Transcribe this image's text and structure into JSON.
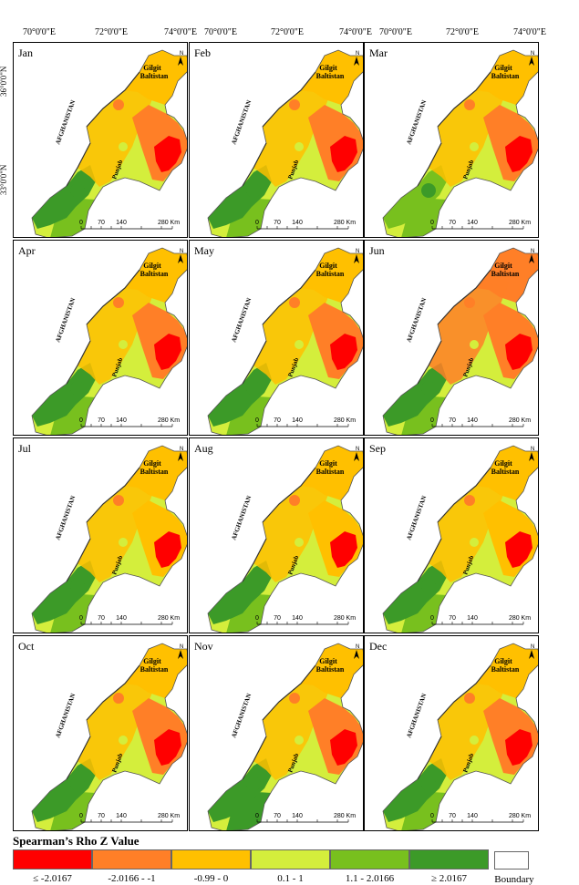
{
  "top_axis_labels": [
    "70°0'0\"E",
    "72°0'0\"E",
    "74°0'0\"E",
    "70°0'0\"E",
    "72°0'0\"E",
    "74°0'0\"E",
    "70°0'0\"E",
    "72°0'0\"E",
    "74°0'0\"E"
  ],
  "side_axis_labels": [
    "36°0'0\"N",
    "33°0'0\"N"
  ],
  "map_text": {
    "region_gb_line1": "Gilgit",
    "region_gb_line2": "Baltistan",
    "afghanistan": "AFGHANISTAN",
    "punjab": "Punjab",
    "north_arrow": "N",
    "scale_labels": [
      "0",
      "70",
      "140",
      "280 Km"
    ]
  },
  "panels": [
    {
      "month": "Jan",
      "classes": {
        "west": 5,
        "southwest": 4,
        "center": 3,
        "north": 2,
        "east_outer": 1,
        "east_core": 0
      }
    },
    {
      "month": "Feb",
      "classes": {
        "west": 5,
        "southwest": 4,
        "center": 3,
        "north": 2,
        "east_outer": 1,
        "east_core": 0
      }
    },
    {
      "month": "Mar",
      "classes": {
        "west": 4,
        "southwest": 4,
        "center": 3,
        "north": 2,
        "east_outer": 1,
        "east_core": 0
      }
    },
    {
      "month": "Apr",
      "classes": {
        "west": 5,
        "southwest": 4,
        "center": 3,
        "north": 2,
        "east_outer": 1,
        "east_core": 0
      }
    },
    {
      "month": "May",
      "classes": {
        "west": 5,
        "southwest": 4,
        "center": 3,
        "north": 2,
        "east_outer": 1,
        "east_core": 0
      }
    },
    {
      "month": "Jun",
      "classes": {
        "west": 5,
        "southwest": 4,
        "center": 3,
        "north": 1,
        "east_outer": 1,
        "east_core": 0
      }
    },
    {
      "month": "Jul",
      "classes": {
        "west": 5,
        "southwest": 4,
        "center": 3,
        "north": 2,
        "east_outer": 2,
        "east_core": 0
      }
    },
    {
      "month": "Aug",
      "classes": {
        "west": 5,
        "southwest": 4,
        "center": 3,
        "north": 2,
        "east_outer": 2,
        "east_core": 0
      }
    },
    {
      "month": "Sep",
      "classes": {
        "west": 5,
        "southwest": 4,
        "center": 3,
        "north": 2,
        "east_outer": 2,
        "east_core": 0
      }
    },
    {
      "month": "Oct",
      "classes": {
        "west": 5,
        "southwest": 4,
        "center": 3,
        "north": 2,
        "east_outer": 1,
        "east_core": 0
      }
    },
    {
      "month": "Nov",
      "classes": {
        "west": 5,
        "southwest": 5,
        "center": 3,
        "north": 2,
        "east_outer": 1,
        "east_core": 0
      }
    },
    {
      "month": "Dec",
      "classes": {
        "west": 5,
        "southwest": 4,
        "center": 3,
        "north": 2,
        "east_outer": 1,
        "east_core": 0
      }
    }
  ],
  "legend": {
    "title": "Spearman’s Rho Z Value",
    "classes": [
      {
        "label": "≤  -2.0167",
        "color": "#ff0000"
      },
      {
        "label": "-2.0166 - -1",
        "color": "#ff7f27"
      },
      {
        "label": "-0.99 - 0",
        "color": "#ffc000"
      },
      {
        "label": "0.1 - 1",
        "color": "#d4ee3c"
      },
      {
        "label": "1.1 - 2.0166",
        "color": "#78c01e"
      },
      {
        "label": "≥ 2.0167",
        "color": "#3c9a28"
      }
    ],
    "boundary_label": "Boundary"
  }
}
